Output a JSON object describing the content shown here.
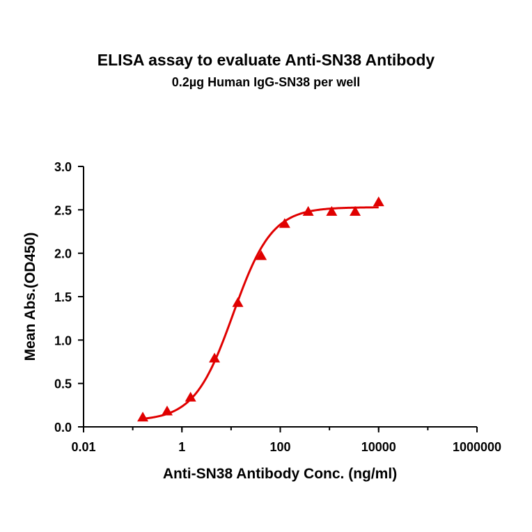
{
  "chart_data": {
    "type": "scatter",
    "title": "ELISA assay to evaluate Anti-SN38 Antibody",
    "subtitle": "0.2µg Human IgG-SN38 per well",
    "xlabel": "Anti-SN38 Antibody Conc. (ng/ml)",
    "ylabel": "Mean Abs.(OD450)",
    "xscale": "log",
    "xlim": [
      0.01,
      1000000
    ],
    "ylim": [
      0,
      3.0
    ],
    "x_ticks": [
      "0.01",
      "1",
      "100",
      "10000",
      "1000000"
    ],
    "x_tick_values": [
      0.01,
      1,
      100,
      10000,
      1000000
    ],
    "y_ticks": [
      "0.0",
      "0.5",
      "1.0",
      "1.5",
      "2.0",
      "2.5",
      "3.0"
    ],
    "y_tick_values": [
      0,
      0.5,
      1.0,
      1.5,
      2.0,
      2.5,
      3.0
    ],
    "grid": false,
    "legend": "none",
    "series": [
      {
        "marker": "triangle",
        "color": "#e00000",
        "x": [
          0.16,
          0.5,
          1.5,
          4.6,
          13.7,
          41,
          123,
          370,
          1111,
          3333,
          10000
        ],
        "y": [
          0.11,
          0.18,
          0.34,
          0.79,
          1.43,
          1.97,
          2.34,
          2.48,
          2.48,
          2.48,
          2.59
        ]
      }
    ],
    "fit": {
      "type": "4PL",
      "color": "#e00000",
      "bottom": 0.07,
      "top": 2.53,
      "ec50": 11.0,
      "hill": 1.1,
      "x_range": [
        0.16,
        10000
      ]
    }
  }
}
